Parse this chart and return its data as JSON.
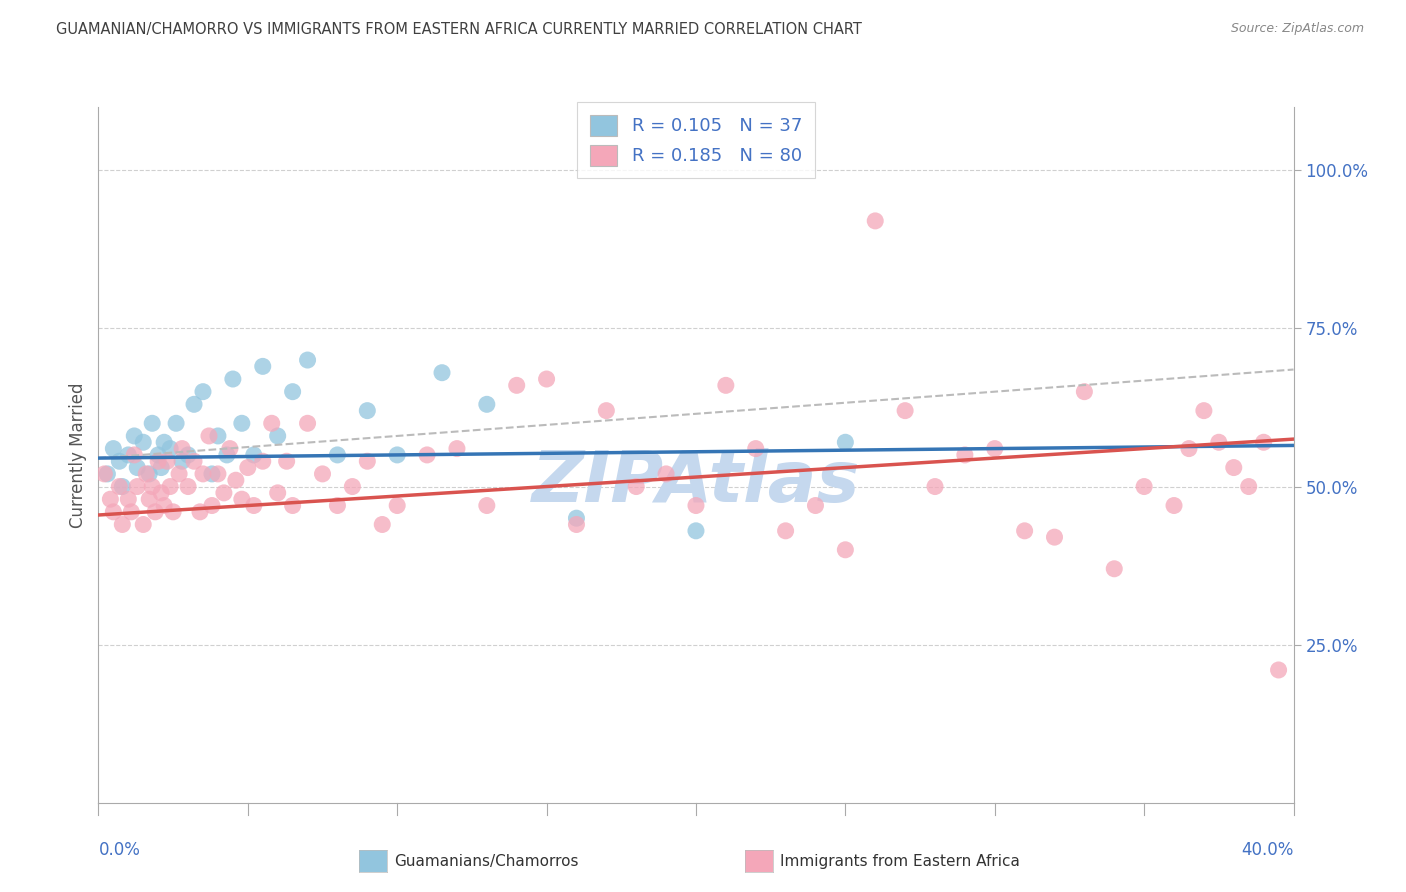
{
  "title": "GUAMANIAN/CHAMORRO VS IMMIGRANTS FROM EASTERN AFRICA CURRENTLY MARRIED CORRELATION CHART",
  "source": "Source: ZipAtlas.com",
  "ylabel": "Currently Married",
  "legend_label1": "Guamanians/Chamorros",
  "legend_label2": "Immigrants from Eastern Africa",
  "xlim": [
    0.0,
    0.4
  ],
  "ylim": [
    0.0,
    1.1
  ],
  "ytick_vals": [
    0.25,
    0.5,
    0.75,
    1.0
  ],
  "ytick_labels": [
    "25.0%",
    "50.0%",
    "75.0%",
    "100.0%"
  ],
  "xtick_vals": [
    0.0,
    0.4
  ],
  "xtick_labels": [
    "0.0%",
    "40.0%"
  ],
  "blue_color": "#92c5de",
  "pink_color": "#f4a7b9",
  "blue_line_color": "#3575b5",
  "pink_line_color": "#d9534f",
  "dashed_line_color": "#bbbbbb",
  "watermark_text": "ZIPAtlas",
  "watermark_color": "#c5d8ee",
  "axis_color": "#4472c4",
  "title_color": "#404040",
  "grid_color": "#d0d0d0",
  "source_color": "#888888",
  "blue_scatter_x": [
    0.003,
    0.005,
    0.007,
    0.008,
    0.01,
    0.012,
    0.013,
    0.015,
    0.017,
    0.018,
    0.02,
    0.021,
    0.022,
    0.024,
    0.026,
    0.028,
    0.03,
    0.032,
    0.035,
    0.038,
    0.04,
    0.043,
    0.045,
    0.048,
    0.052,
    0.055,
    0.06,
    0.065,
    0.07,
    0.08,
    0.09,
    0.1,
    0.115,
    0.13,
    0.16,
    0.2,
    0.25
  ],
  "blue_scatter_y": [
    0.52,
    0.56,
    0.54,
    0.5,
    0.55,
    0.58,
    0.53,
    0.57,
    0.52,
    0.6,
    0.55,
    0.53,
    0.57,
    0.56,
    0.6,
    0.54,
    0.55,
    0.63,
    0.65,
    0.52,
    0.58,
    0.55,
    0.67,
    0.6,
    0.55,
    0.69,
    0.58,
    0.65,
    0.7,
    0.55,
    0.62,
    0.55,
    0.68,
    0.63,
    0.45,
    0.43,
    0.57
  ],
  "pink_scatter_x": [
    0.002,
    0.004,
    0.005,
    0.007,
    0.008,
    0.01,
    0.011,
    0.012,
    0.013,
    0.015,
    0.016,
    0.017,
    0.018,
    0.019,
    0.02,
    0.021,
    0.022,
    0.023,
    0.024,
    0.025,
    0.027,
    0.028,
    0.03,
    0.032,
    0.034,
    0.035,
    0.037,
    0.038,
    0.04,
    0.042,
    0.044,
    0.046,
    0.048,
    0.05,
    0.052,
    0.055,
    0.058,
    0.06,
    0.063,
    0.065,
    0.07,
    0.075,
    0.08,
    0.085,
    0.09,
    0.095,
    0.1,
    0.11,
    0.12,
    0.13,
    0.14,
    0.15,
    0.16,
    0.17,
    0.18,
    0.19,
    0.2,
    0.21,
    0.22,
    0.23,
    0.24,
    0.25,
    0.26,
    0.27,
    0.28,
    0.29,
    0.3,
    0.31,
    0.32,
    0.33,
    0.34,
    0.35,
    0.36,
    0.365,
    0.37,
    0.375,
    0.38,
    0.385,
    0.39,
    0.395
  ],
  "pink_scatter_y": [
    0.52,
    0.48,
    0.46,
    0.5,
    0.44,
    0.48,
    0.46,
    0.55,
    0.5,
    0.44,
    0.52,
    0.48,
    0.5,
    0.46,
    0.54,
    0.49,
    0.47,
    0.54,
    0.5,
    0.46,
    0.52,
    0.56,
    0.5,
    0.54,
    0.46,
    0.52,
    0.58,
    0.47,
    0.52,
    0.49,
    0.56,
    0.51,
    0.48,
    0.53,
    0.47,
    0.54,
    0.6,
    0.49,
    0.54,
    0.47,
    0.6,
    0.52,
    0.47,
    0.5,
    0.54,
    0.44,
    0.47,
    0.55,
    0.56,
    0.47,
    0.66,
    0.67,
    0.44,
    0.62,
    0.5,
    0.52,
    0.47,
    0.66,
    0.56,
    0.43,
    0.47,
    0.4,
    0.92,
    0.62,
    0.5,
    0.55,
    0.56,
    0.43,
    0.42,
    0.65,
    0.37,
    0.5,
    0.47,
    0.56,
    0.62,
    0.57,
    0.53,
    0.5,
    0.57,
    0.21
  ],
  "blue_trend": [
    0.545,
    0.565
  ],
  "pink_trend": [
    0.455,
    0.575
  ],
  "dashed_trend": [
    0.545,
    0.685
  ],
  "blue_r": 0.105,
  "blue_n": 37,
  "pink_r": 0.185,
  "pink_n": 80
}
